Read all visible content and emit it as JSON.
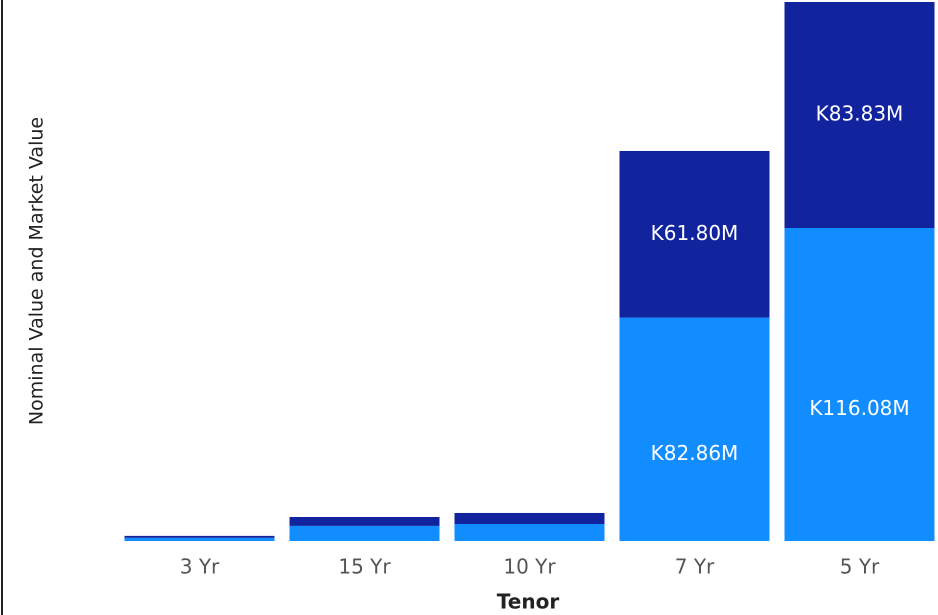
{
  "chart_data": {
    "type": "stacked_bar",
    "y_axis_label": "Nominal Value and Market Value",
    "x_axis_label": "Tenor",
    "categories": [
      "3 Yr",
      "15 Yr",
      "10 Yr",
      "7 Yr",
      "5 Yr"
    ],
    "series": [
      {
        "color": "#118DFF",
        "values": [
          1.2,
          5.6,
          6.3,
          82.86,
          116.08
        ],
        "value_labels": [
          null,
          null,
          null,
          "K82.86M",
          "K116.08M"
        ]
      },
      {
        "color": "#12239E",
        "values": [
          0.7,
          3.3,
          4.1,
          61.8,
          83.83
        ],
        "value_labels": [
          null,
          null,
          null,
          "K61.80M",
          "K83.83M"
        ]
      }
    ]
  }
}
